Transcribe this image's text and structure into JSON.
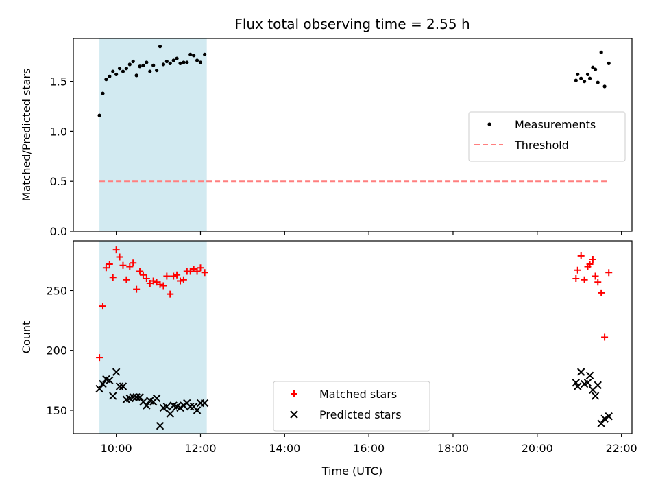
{
  "chart_data": {
    "title": "Flux total observing time = 2.55 h",
    "xlabel": "Time (UTC)",
    "x_ticks": [
      "10:00",
      "12:00",
      "14:00",
      "16:00",
      "18:00",
      "20:00",
      "22:00"
    ],
    "x_tick_hours": [
      10,
      12,
      14,
      16,
      18,
      20,
      22
    ],
    "xlim_hours": [
      8.98,
      22.25
    ],
    "highlight_span_hours": [
      9.6,
      12.15
    ],
    "highlight_color": "#add8e6",
    "panels": [
      {
        "type": "scatter",
        "ylabel": "Matched/Predicted stars",
        "ylim": [
          0,
          1.93
        ],
        "y_ticks": [
          "0.0",
          "0.5",
          "1.0",
          "1.5"
        ],
        "y_tick_values": [
          0.0,
          0.5,
          1.0,
          1.5
        ],
        "legend_position": "center-right",
        "legend": [
          "Measurements",
          "Threshold"
        ],
        "threshold": {
          "name": "Threshold",
          "value": 0.5,
          "x_range_hours": [
            9.6,
            21.68
          ],
          "color": "#ff7f7f"
        },
        "series": [
          {
            "name": "Measurements",
            "marker": "dot",
            "color": "#000000",
            "x_hours": [
              9.6,
              9.68,
              9.76,
              9.84,
              9.92,
              10.0,
              10.08,
              10.16,
              10.24,
              10.32,
              10.4,
              10.48,
              10.56,
              10.64,
              10.72,
              10.8,
              10.88,
              10.96,
              11.04,
              11.12,
              11.2,
              11.28,
              11.36,
              11.44,
              11.52,
              11.6,
              11.68,
              11.76,
              11.84,
              11.92,
              12.0,
              12.1,
              20.92,
              20.96,
              21.04,
              21.12,
              21.2,
              21.25,
              21.32,
              21.38,
              21.44,
              21.52,
              21.6,
              21.7
            ],
            "values": [
              1.16,
              1.38,
              1.52,
              1.55,
              1.6,
              1.57,
              1.63,
              1.6,
              1.63,
              1.67,
              1.7,
              1.56,
              1.65,
              1.66,
              1.69,
              1.6,
              1.66,
              1.61,
              1.85,
              1.67,
              1.7,
              1.68,
              1.71,
              1.73,
              1.68,
              1.69,
              1.69,
              1.77,
              1.76,
              1.71,
              1.69,
              1.77,
              1.51,
              1.57,
              1.53,
              1.5,
              1.57,
              1.53,
              1.64,
              1.62,
              1.49,
              1.79,
              1.45,
              1.68
            ]
          }
        ]
      },
      {
        "type": "scatter",
        "ylabel": "Count",
        "ylim": [
          130.5,
          291.5
        ],
        "y_ticks": [
          "150",
          "200",
          "250"
        ],
        "y_tick_values": [
          150,
          200,
          250
        ],
        "legend_position": "lower-center",
        "legend": [
          "Matched stars",
          "Predicted stars"
        ],
        "series": [
          {
            "name": "Matched stars",
            "marker": "plus",
            "color": "#ff0000",
            "x_hours": [
              9.6,
              9.68,
              9.76,
              9.84,
              9.92,
              10.0,
              10.08,
              10.16,
              10.24,
              10.32,
              10.4,
              10.48,
              10.56,
              10.64,
              10.72,
              10.8,
              10.88,
              10.96,
              11.04,
              11.12,
              11.2,
              11.28,
              11.36,
              11.44,
              11.52,
              11.6,
              11.68,
              11.76,
              11.84,
              11.92,
              12.0,
              12.1,
              20.92,
              20.96,
              21.04,
              21.12,
              21.2,
              21.25,
              21.32,
              21.38,
              21.44,
              21.52,
              21.6,
              21.7
            ],
            "values": [
              194,
              237,
              269,
              272,
              261,
              284,
              278,
              271,
              259,
              270,
              273,
              251,
              266,
              263,
              260,
              256,
              258,
              257,
              255,
              254,
              262,
              247,
              262,
              263,
              258,
              259,
              266,
              266,
              268,
              266,
              269,
              265,
              260,
              267,
              279,
              259,
              270,
              272,
              276,
              262,
              257,
              248,
              211,
              265
            ]
          },
          {
            "name": "Predicted stars",
            "marker": "x",
            "color": "#000000",
            "x_hours": [
              9.6,
              9.68,
              9.76,
              9.84,
              9.92,
              10.0,
              10.08,
              10.16,
              10.24,
              10.32,
              10.4,
              10.48,
              10.56,
              10.64,
              10.72,
              10.8,
              10.88,
              10.96,
              11.04,
              11.12,
              11.2,
              11.28,
              11.36,
              11.44,
              11.52,
              11.6,
              11.68,
              11.76,
              11.84,
              11.92,
              12.0,
              12.1,
              20.92,
              20.96,
              21.04,
              21.12,
              21.2,
              21.25,
              21.32,
              21.38,
              21.44,
              21.52,
              21.6,
              21.7
            ],
            "values": [
              168,
              172,
              176,
              175,
              162,
              182,
              170,
              170,
              159,
              160,
              161,
              161,
              161,
              157,
              154,
              158,
              157,
              160,
              137,
              152,
              153,
              147,
              154,
              153,
              152,
              154,
              156,
              153,
              153,
              150,
              156,
              156,
              173,
              170,
              182,
              172,
              173,
              179,
              167,
              162,
              171,
              139,
              143,
              145
            ]
          }
        ]
      }
    ]
  }
}
